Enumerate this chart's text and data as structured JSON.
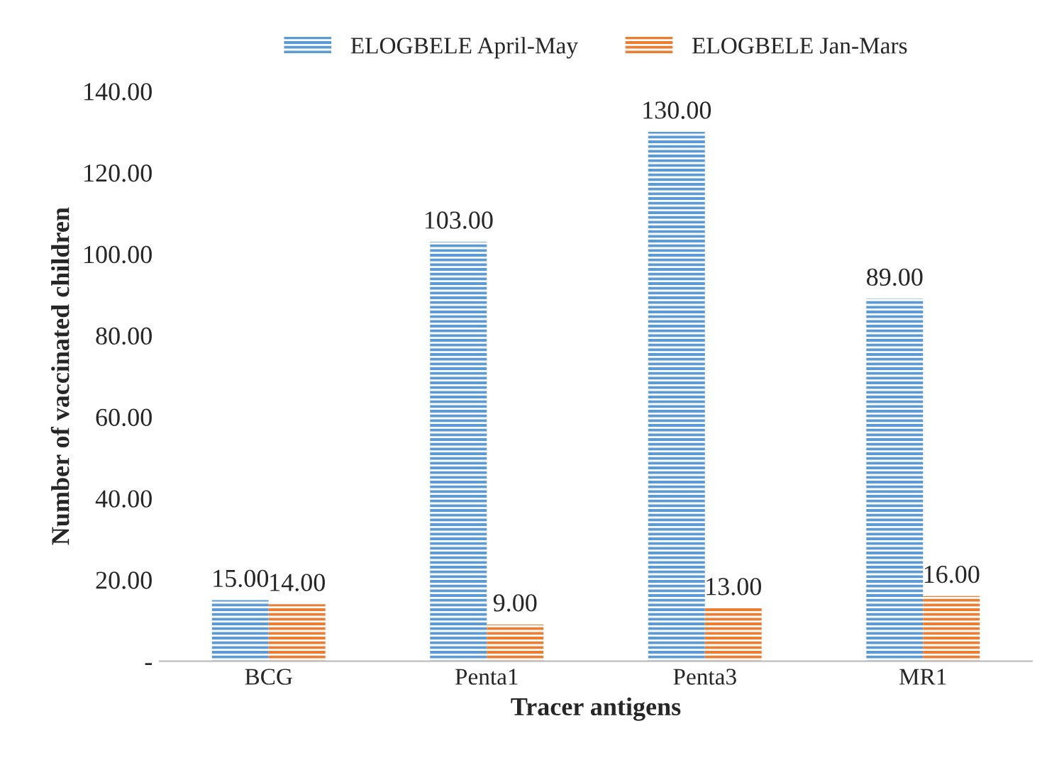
{
  "chart_data": {
    "type": "bar",
    "xlabel": "Tracer antigens",
    "ylabel": "Number of vaccinated children",
    "categories": [
      "BCG",
      "Penta1",
      "Penta3",
      "MR1"
    ],
    "series": [
      {
        "name": "ELOGBELE April-May",
        "color": "#5b9bd5",
        "values": [
          15,
          103,
          130,
          89
        ],
        "value_labels": [
          "15.00",
          "103.00",
          "130.00",
          "89.00"
        ]
      },
      {
        "name": "ELOGBELE Jan-Mars",
        "color": "#ed7d31",
        "values": [
          14,
          9,
          13,
          16
        ],
        "value_labels": [
          "14.00",
          "9.00",
          "13.00",
          "16.00"
        ]
      }
    ],
    "ylim": [
      0,
      140
    ],
    "yticks": [
      {
        "value": 0,
        "label": "-"
      },
      {
        "value": 20,
        "label": "20.00"
      },
      {
        "value": 40,
        "label": "40.00"
      },
      {
        "value": 60,
        "label": "60.00"
      },
      {
        "value": 80,
        "label": "80.00"
      },
      {
        "value": 100,
        "label": "100.00"
      },
      {
        "value": 120,
        "label": "120.00"
      },
      {
        "value": 140,
        "label": "140.00"
      }
    ],
    "legend": "top",
    "grid": false
  }
}
